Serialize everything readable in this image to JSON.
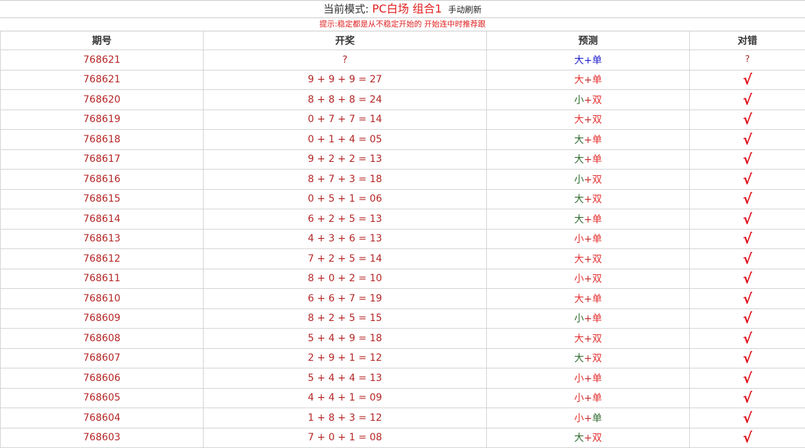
{
  "header": {
    "prefix": "当前模式:",
    "mode": "PC白场 组合1",
    "refresh": "手动刷新"
  },
  "hint": "提示:稳定都是从不稳定开始的 开始连中时推荐跟",
  "columns": [
    "期号",
    "开奖",
    "预测",
    "对错"
  ],
  "colors": {
    "red": "#e53030",
    "green": "#2e6b2e",
    "blue": "#2020d0",
    "text": "#b52525",
    "check": "#e0101a"
  },
  "rows": [
    {
      "issue": "768621",
      "draw": "?",
      "size": "大",
      "size_color": "blue",
      "parity": "单",
      "parity_color": "blue",
      "result": "?"
    },
    {
      "issue": "768621",
      "draw": "9 + 9 + 9 = 27",
      "size": "大",
      "size_color": "red",
      "parity": "单",
      "parity_color": "red",
      "result": "√"
    },
    {
      "issue": "768620",
      "draw": "8 + 8 + 8 = 24",
      "size": "小",
      "size_color": "green",
      "parity": "双",
      "parity_color": "red",
      "result": "√"
    },
    {
      "issue": "768619",
      "draw": "0 + 7 + 7 = 14",
      "size": "大",
      "size_color": "red",
      "parity": "双",
      "parity_color": "red",
      "result": "√"
    },
    {
      "issue": "768618",
      "draw": "0 + 1 + 4 = 05",
      "size": "大",
      "size_color": "green",
      "parity": "单",
      "parity_color": "red",
      "result": "√"
    },
    {
      "issue": "768617",
      "draw": "9 + 2 + 2 = 13",
      "size": "大",
      "size_color": "green",
      "parity": "单",
      "parity_color": "red",
      "result": "√"
    },
    {
      "issue": "768616",
      "draw": "8 + 7 + 3 = 18",
      "size": "小",
      "size_color": "green",
      "parity": "双",
      "parity_color": "red",
      "result": "√"
    },
    {
      "issue": "768615",
      "draw": "0 + 5 + 1 = 06",
      "size": "大",
      "size_color": "green",
      "parity": "双",
      "parity_color": "red",
      "result": "√"
    },
    {
      "issue": "768614",
      "draw": "6 + 2 + 5 = 13",
      "size": "大",
      "size_color": "green",
      "parity": "单",
      "parity_color": "red",
      "result": "√"
    },
    {
      "issue": "768613",
      "draw": "4 + 3 + 6 = 13",
      "size": "小",
      "size_color": "red",
      "parity": "单",
      "parity_color": "red",
      "result": "√"
    },
    {
      "issue": "768612",
      "draw": "7 + 2 + 5 = 14",
      "size": "大",
      "size_color": "red",
      "parity": "双",
      "parity_color": "red",
      "result": "√"
    },
    {
      "issue": "768611",
      "draw": "8 + 0 + 2 = 10",
      "size": "小",
      "size_color": "red",
      "parity": "双",
      "parity_color": "red",
      "result": "√"
    },
    {
      "issue": "768610",
      "draw": "6 + 6 + 7 = 19",
      "size": "大",
      "size_color": "red",
      "parity": "单",
      "parity_color": "red",
      "result": "√"
    },
    {
      "issue": "768609",
      "draw": "8 + 2 + 5 = 15",
      "size": "小",
      "size_color": "green",
      "parity": "单",
      "parity_color": "red",
      "result": "√"
    },
    {
      "issue": "768608",
      "draw": "5 + 4 + 9 = 18",
      "size": "大",
      "size_color": "red",
      "parity": "双",
      "parity_color": "red",
      "result": "√"
    },
    {
      "issue": "768607",
      "draw": "2 + 9 + 1 = 12",
      "size": "大",
      "size_color": "green",
      "parity": "双",
      "parity_color": "red",
      "result": "√"
    },
    {
      "issue": "768606",
      "draw": "5 + 4 + 4 = 13",
      "size": "小",
      "size_color": "red",
      "parity": "单",
      "parity_color": "red",
      "result": "√"
    },
    {
      "issue": "768605",
      "draw": "4 + 4 + 1 = 09",
      "size": "小",
      "size_color": "red",
      "parity": "单",
      "parity_color": "red",
      "result": "√"
    },
    {
      "issue": "768604",
      "draw": "1 + 8 + 3 = 12",
      "size": "小",
      "size_color": "red",
      "parity": "单",
      "parity_color": "green",
      "result": "√"
    },
    {
      "issue": "768603",
      "draw": "7 + 0 + 1 = 08",
      "size": "大",
      "size_color": "green",
      "parity": "双",
      "parity_color": "red",
      "result": "√"
    }
  ]
}
